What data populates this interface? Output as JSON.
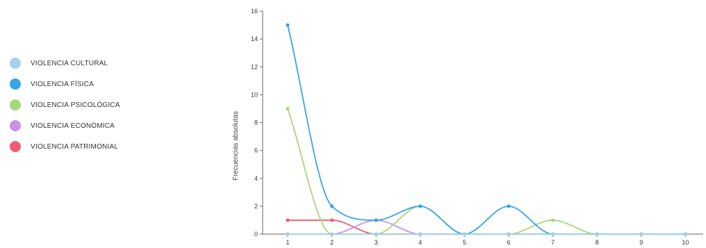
{
  "chart_data": {
    "type": "line",
    "x": [
      1,
      2,
      3,
      4,
      5,
      6,
      7,
      8,
      9,
      10
    ],
    "ylabel": "Frecuencias absolutas",
    "xlim": [
      1,
      10
    ],
    "ylim": [
      0,
      16
    ],
    "y_ticks": [
      0,
      2,
      4,
      6,
      8,
      10,
      12,
      14,
      16
    ],
    "x_ticks": [
      1,
      2,
      3,
      4,
      5,
      6,
      7,
      8,
      9,
      10
    ],
    "grid": false,
    "legend_position": "left",
    "curve": "smooth",
    "series": [
      {
        "name": "VIOLENCIA CULTURAL",
        "color": "#9fd3ef",
        "values": [
          0,
          0,
          0,
          0,
          0,
          0,
          0,
          0,
          0,
          0
        ]
      },
      {
        "name": "VIOLENCIA FÍSICA",
        "color": "#35a6e6",
        "values": [
          15,
          2,
          1,
          2,
          0,
          2,
          0,
          0,
          0,
          0
        ]
      },
      {
        "name": "VIOLENCIA PSICOLÓGICA",
        "color": "#a6d878",
        "values": [
          9,
          0,
          0,
          2,
          0,
          0,
          1,
          0,
          0,
          0
        ]
      },
      {
        "name": "VIOLENCIA ECONÓMICA",
        "color": "#c990ec",
        "values": [
          0,
          0,
          1,
          0,
          0,
          0,
          0,
          0,
          0,
          0
        ]
      },
      {
        "name": "VIOLENCIA PATRIMONIAL",
        "color": "#ee5d73",
        "values": [
          1,
          1,
          0,
          0,
          0,
          0,
          0,
          0,
          0,
          0
        ]
      }
    ]
  }
}
